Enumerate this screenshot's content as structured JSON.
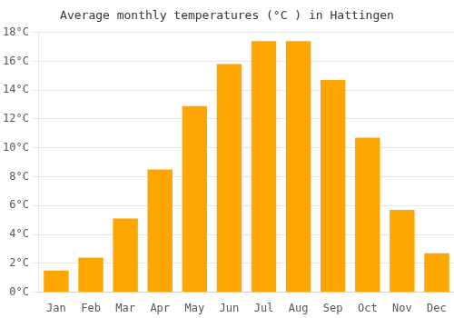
{
  "chart_data": {
    "type": "bar",
    "title": "Average monthly temperatures (°C ) in Hattingen",
    "categories": [
      "Jan",
      "Feb",
      "Mar",
      "Apr",
      "May",
      "Jun",
      "Jul",
      "Aug",
      "Sep",
      "Oct",
      "Nov",
      "Dec"
    ],
    "values": [
      1.5,
      2.4,
      5.1,
      8.5,
      12.9,
      15.8,
      17.4,
      17.4,
      14.7,
      10.7,
      5.7,
      2.7
    ],
    "color": "#FFA500",
    "ylim": [
      0,
      18
    ],
    "yticks": [
      {
        "value": 0,
        "label": "0°C"
      },
      {
        "value": 2,
        "label": "2°C"
      },
      {
        "value": 4,
        "label": "4°C"
      },
      {
        "value": 6,
        "label": "6°C"
      },
      {
        "value": 8,
        "label": "8°C"
      },
      {
        "value": 10,
        "label": "10°C"
      },
      {
        "value": 12,
        "label": "12°C"
      },
      {
        "value": 14,
        "label": "14°C"
      },
      {
        "value": 16,
        "label": "16°C"
      },
      {
        "value": 18,
        "label": "18°C"
      }
    ],
    "grid": true
  }
}
